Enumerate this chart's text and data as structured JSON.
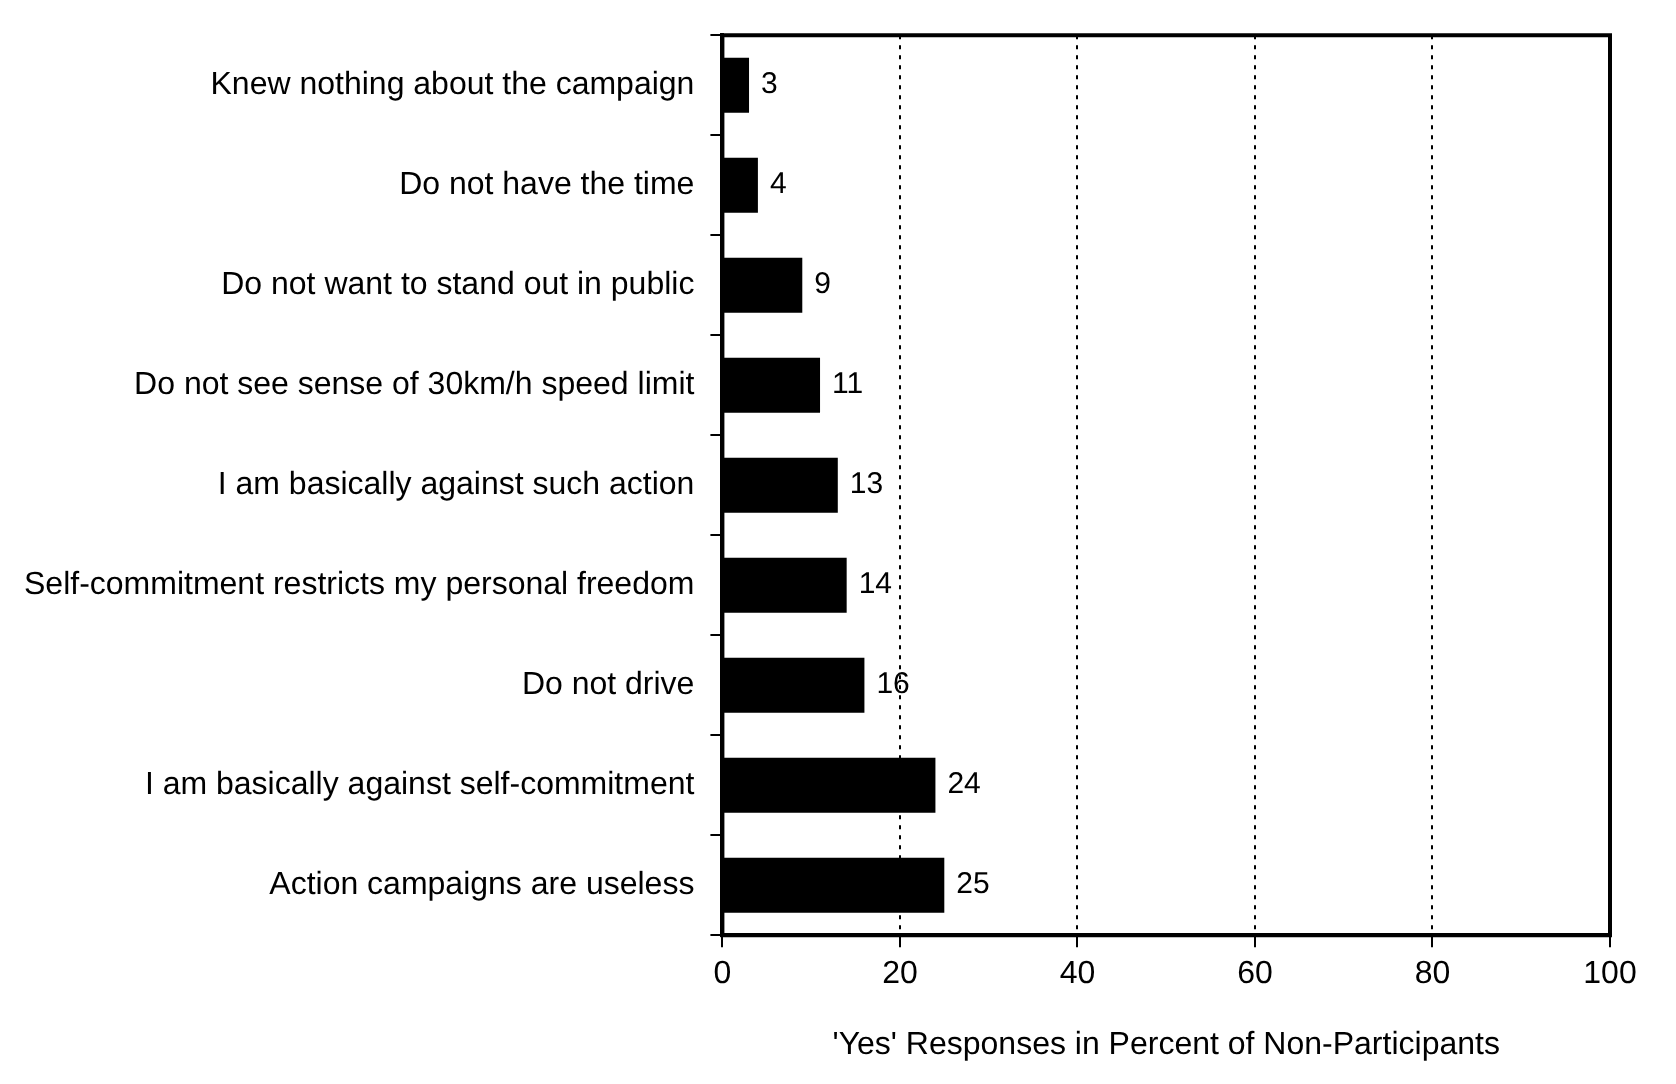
{
  "chart_data": {
    "type": "bar",
    "orientation": "horizontal",
    "categories": [
      "Knew nothing about the campaign",
      "Do not have the time",
      "Do not want to stand out in public",
      "Do not see sense of 30km/h speed limit",
      "I am basically against such action",
      "Self-commitment restricts my personal freedom",
      "Do not drive",
      "I am basically against self-commitment",
      "Action campaigns are useless"
    ],
    "values": [
      3,
      4,
      9,
      11,
      13,
      14,
      16,
      24,
      25
    ],
    "color": "#000000",
    "xlabel": "'Yes' Responses in Percent of Non-Participants",
    "xlim": [
      0,
      100
    ],
    "xticks": [
      0,
      20,
      40,
      60,
      80,
      100
    ],
    "grid": "x",
    "data_labels": true
  }
}
